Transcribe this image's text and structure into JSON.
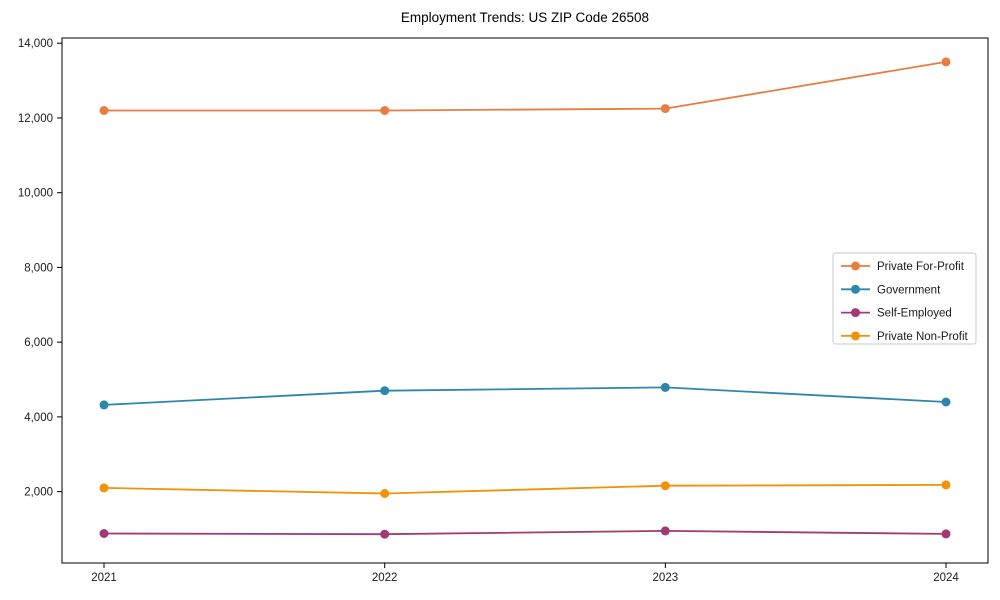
{
  "chart_data": {
    "type": "line",
    "title": "Employment Trends: US ZIP Code 26508",
    "categories": [
      "2021",
      "2022",
      "2023",
      "2024"
    ],
    "series": [
      {
        "name": "Private For-Profit",
        "color": "#E87D41",
        "values": [
          12200,
          12200,
          12250,
          13500
        ]
      },
      {
        "name": "Government",
        "color": "#2E86AB",
        "values": [
          4320,
          4700,
          4790,
          4400
        ]
      },
      {
        "name": "Self-Employed",
        "color": "#A23B72",
        "values": [
          880,
          860,
          950,
          870
        ]
      },
      {
        "name": "Private Non-Profit",
        "color": "#F0920A",
        "values": [
          2100,
          1950,
          2160,
          2180
        ]
      }
    ],
    "xlabel": "",
    "ylabel": "",
    "ylim": [
      90,
      14140
    ],
    "yticks": [
      2000,
      4000,
      6000,
      8000,
      10000,
      12000,
      14000
    ],
    "ytick_labels": [
      "2,000",
      "4,000",
      "6,000",
      "8,000",
      "10,000",
      "12,000",
      "14,000"
    ],
    "grid": false,
    "legend_position": "center right",
    "marker": "circle",
    "background": "#ffffff",
    "axis_color": "#000000",
    "legend_border_color": "#c9c9c9"
  }
}
